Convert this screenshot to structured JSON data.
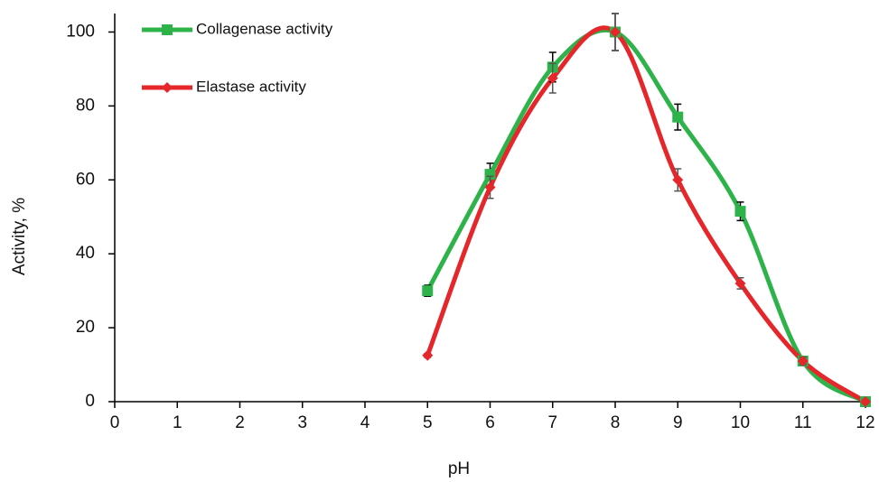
{
  "chart_data": {
    "type": "line",
    "x_label": "pH",
    "y_label": "Activity, %",
    "x": [
      5,
      6,
      7,
      8,
      9,
      10,
      11,
      12
    ],
    "series": [
      {
        "name": "Collagenase activity",
        "color": "#2db34a",
        "marker": "square",
        "values": [
          30,
          61.5,
          90.5,
          100,
          77,
          51.5,
          11,
          0
        ],
        "errors": [
          1.5,
          3,
          4,
          5,
          3.5,
          2.5,
          1,
          0.5
        ]
      },
      {
        "name": "Elastase activity",
        "color": "#e5262b",
        "marker": "diamond",
        "values": [
          12.5,
          58,
          87.5,
          100,
          60,
          32,
          11,
          0
        ],
        "errors": [
          0.5,
          3,
          4,
          5,
          3,
          1.5,
          1,
          0.5
        ]
      }
    ],
    "xlim": [
      0,
      12
    ],
    "xticks": [
      0,
      1,
      2,
      3,
      4,
      5,
      6,
      7,
      8,
      9,
      10,
      11,
      12
    ],
    "ylim": [
      0,
      105
    ],
    "yticks": [
      0,
      20,
      40,
      60,
      80,
      100
    ],
    "smooth": true,
    "legend": "upper left"
  }
}
